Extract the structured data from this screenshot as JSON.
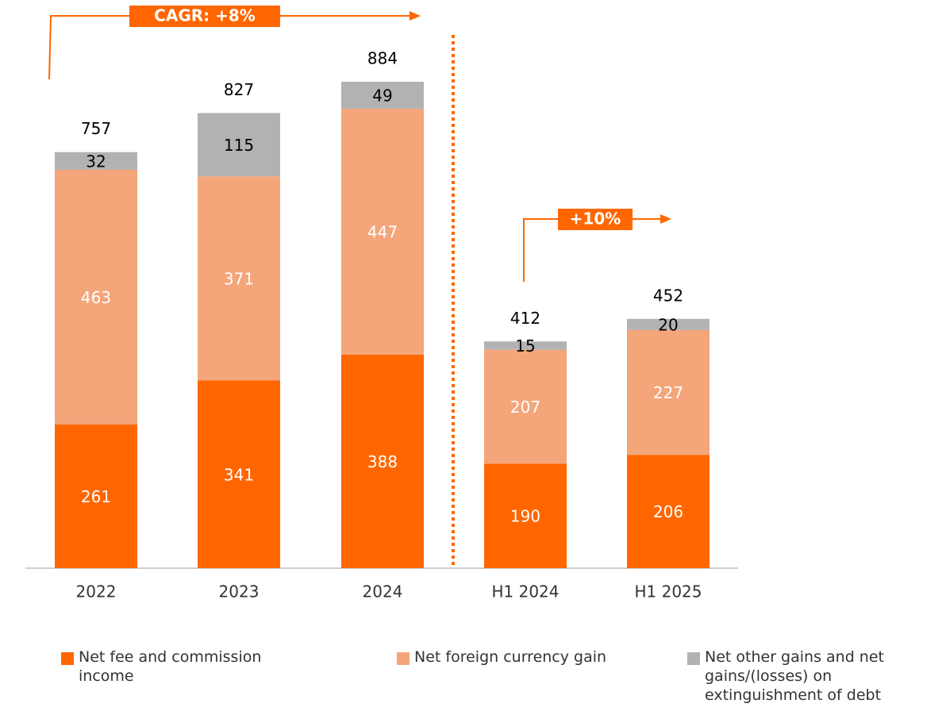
{
  "chart_data": {
    "type": "stacked_bar",
    "categories": [
      "2022",
      "2023",
      "2024",
      "H1 2024",
      "H1 2025"
    ],
    "series": [
      {
        "name": "Net fee and commission income",
        "color": "#ff6600",
        "label_color": "#ffffff",
        "values": [
          261,
          341,
          388,
          190,
          206
        ]
      },
      {
        "name": "Net foreign currency gain",
        "color": "#f4a57a",
        "label_color": "#ffffff",
        "values": [
          463,
          371,
          447,
          207,
          227
        ]
      },
      {
        "name": "Net other gains and net gains/(losses) on extinguishment of debt",
        "color": "#b2b2b2",
        "label_color": "#000000",
        "values": [
          32,
          115,
          49,
          15,
          20
        ]
      }
    ],
    "totals": [
      757,
      827,
      884,
      412,
      452
    ],
    "annotations": [
      "CAGR: +8%",
      "+10%"
    ]
  }
}
